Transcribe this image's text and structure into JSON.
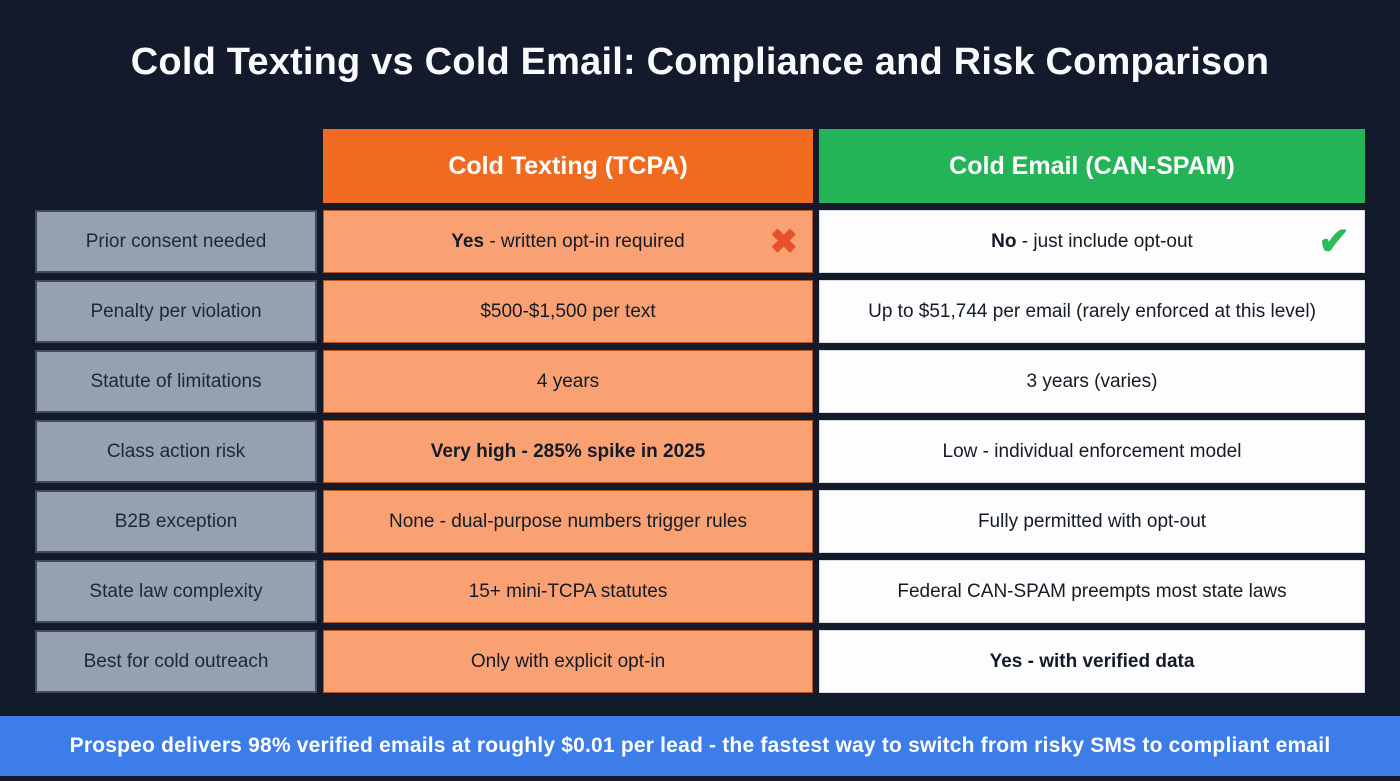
{
  "title": "Cold Texting vs Cold Email: Compliance and Risk Comparison",
  "colors": {
    "background": "#131a2b",
    "tcpa_header_orange": "#f06a20",
    "tcpa_cell_orange": "#f9a173",
    "email_header_green": "#25b357",
    "email_cell_white": "#fdfdfe",
    "row_label_gray": "#95a1b2",
    "footer_blue": "#3c7de9",
    "x_icon_red": "#e8502b",
    "check_icon_green": "#2dbb59"
  },
  "icons": {
    "x_mark": "✖",
    "check_mark": "✔"
  },
  "table": {
    "col_tcpa": "Cold Texting (TCPA)",
    "col_email": "Cold Email (CAN-SPAM)",
    "rows": [
      {
        "label": "Prior consent needed",
        "tcpa": {
          "bold": "Yes",
          "rest": " - written opt-in required"
        },
        "email": {
          "bold": "No",
          "rest": " - just include opt-out"
        }
      },
      {
        "label": "Penalty per violation",
        "tcpa": {
          "bold": "",
          "rest": "$500-$1,500 per text"
        },
        "email": {
          "bold": "",
          "rest": "Up to $51,744 per email (rarely enforced at this level)"
        }
      },
      {
        "label": "Statute of limitations",
        "tcpa": {
          "bold": "",
          "rest": "4 years"
        },
        "email": {
          "bold": "",
          "rest": "3 years (varies)"
        }
      },
      {
        "label": "Class action risk",
        "tcpa": {
          "bold": "Very high - 285% spike in 2025",
          "rest": ""
        },
        "email": {
          "bold": "",
          "rest": "Low - individual enforcement model"
        }
      },
      {
        "label": "B2B exception",
        "tcpa": {
          "bold": "",
          "rest": "None - dual-purpose numbers trigger rules"
        },
        "email": {
          "bold": "",
          "rest": "Fully permitted with opt-out"
        }
      },
      {
        "label": "State law complexity",
        "tcpa": {
          "bold": "",
          "rest": "15+ mini-TCPA statutes"
        },
        "email": {
          "bold": "",
          "rest": "Federal CAN-SPAM preempts most state laws"
        }
      },
      {
        "label": "Best for cold outreach",
        "tcpa": {
          "bold": "",
          "rest": "Only with explicit opt-in"
        },
        "email": {
          "bold": "Yes - with verified data",
          "rest": ""
        }
      }
    ]
  },
  "footer": {
    "text": "Prospeo delivers 98% verified emails at roughly $0.01 per lead - the fastest way to switch from risky SMS to compliant email"
  },
  "chart_data": {
    "type": "table",
    "title": "Cold Texting vs Cold Email: Compliance and Risk Comparison",
    "columns": [
      "",
      "Cold Texting (TCPA)",
      "Cold Email (CAN-SPAM)"
    ],
    "rows": [
      [
        "Prior consent needed",
        "Yes - written opt-in required",
        "No - just include opt-out"
      ],
      [
        "Penalty per violation",
        "$500-$1,500 per text",
        "Up to $51,744 per email (rarely enforced at this level)"
      ],
      [
        "Statute of limitations",
        "4 years",
        "3 years (varies)"
      ],
      [
        "Class action risk",
        "Very high - 285% spike in 2025",
        "Low - individual enforcement model"
      ],
      [
        "B2B exception",
        "None - dual-purpose numbers trigger rules",
        "Fully permitted with opt-out"
      ],
      [
        "State law complexity",
        "15+ mini-TCPA statutes",
        "Federal CAN-SPAM preempts most state laws"
      ],
      [
        "Best for cold outreach",
        "Only with explicit opt-in",
        "Yes - with verified data"
      ]
    ],
    "footnote": "Prospeo delivers 98% verified emails at roughly $0.01 per lead - the fastest way to switch from risky SMS to compliant email"
  }
}
